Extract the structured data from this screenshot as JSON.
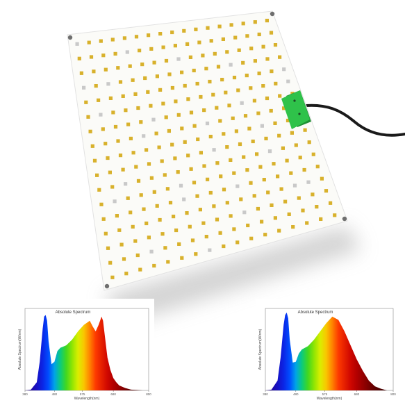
{
  "panel": {
    "board_color": "#fbfbf8",
    "led_warm_color": "#d8b12c",
    "led_white_color": "#c9c9c9",
    "connector_color": "#2fc24a",
    "cable_color": "#1a1a1a"
  },
  "chart_data": [
    {
      "type": "area",
      "title": "Absolute Spectrum",
      "xlabel": "Wavelength(nm)",
      "ylabel": "Absolute Spectrum(W/nm)",
      "x_ticks": [
        "380",
        "480",
        "575",
        "680",
        "800"
      ],
      "xlim": [
        380,
        800
      ],
      "ylim": [
        0,
        1
      ],
      "x": [
        380,
        400,
        420,
        430,
        440,
        445,
        450,
        455,
        460,
        470,
        480,
        490,
        500,
        520,
        540,
        560,
        580,
        600,
        610,
        620,
        630,
        640,
        645,
        650,
        655,
        660,
        670,
        680,
        690,
        700,
        720,
        740,
        760,
        780
      ],
      "values": [
        0,
        0.01,
        0.1,
        0.35,
        0.75,
        0.9,
        0.92,
        0.85,
        0.6,
        0.32,
        0.35,
        0.48,
        0.52,
        0.55,
        0.62,
        0.72,
        0.8,
        0.85,
        0.78,
        0.72,
        0.8,
        0.9,
        0.85,
        0.7,
        0.55,
        0.4,
        0.25,
        0.15,
        0.1,
        0.06,
        0.03,
        0.01,
        0.005,
        0
      ]
    },
    {
      "type": "area",
      "title": "Absolute Spectrum",
      "xlabel": "Wavelength(nm)",
      "ylabel": "Absolute Spectrum(W/nm)",
      "x_ticks": [
        "380",
        "480",
        "575",
        "680",
        "800"
      ],
      "xlim": [
        380,
        800
      ],
      "ylim": [
        0,
        1
      ],
      "x": [
        380,
        400,
        420,
        430,
        440,
        445,
        450,
        455,
        460,
        470,
        480,
        490,
        500,
        520,
        540,
        560,
        580,
        600,
        620,
        640,
        660,
        680,
        700,
        720,
        740,
        760,
        780
      ],
      "values": [
        0,
        0.01,
        0.12,
        0.4,
        0.8,
        0.92,
        0.95,
        0.88,
        0.62,
        0.34,
        0.35,
        0.45,
        0.5,
        0.54,
        0.62,
        0.72,
        0.82,
        0.9,
        0.86,
        0.72,
        0.55,
        0.38,
        0.24,
        0.12,
        0.05,
        0.02,
        0
      ]
    }
  ]
}
